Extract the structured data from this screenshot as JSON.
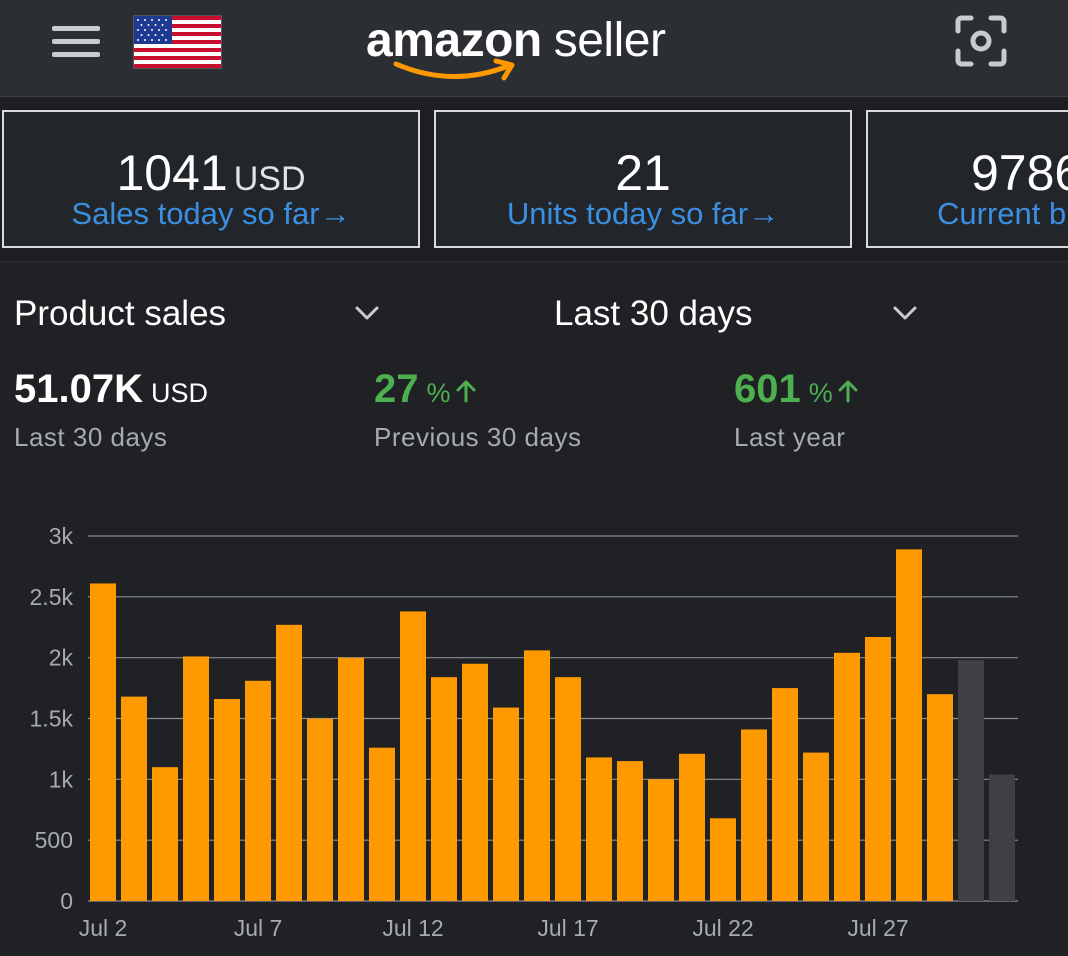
{
  "header": {
    "logo_brand": "amazon",
    "logo_suffix": "seller",
    "icons": [
      "menu-icon",
      "us-flag-icon",
      "scan-icon"
    ]
  },
  "cards": [
    {
      "value": "1041",
      "unit": "USD",
      "link": "Sales today so far"
    },
    {
      "value": "21",
      "unit": "",
      "link": "Units today so far"
    },
    {
      "value": "9786",
      "unit": "",
      "link": "Current b"
    }
  ],
  "link_arrow": "→",
  "selectors": {
    "metric": "Product sales",
    "period": "Last 30 days"
  },
  "stats": {
    "total": {
      "value": "51.07K",
      "unit": "USD",
      "label": "Last 30 days"
    },
    "previous": {
      "value": "27",
      "unit": "%",
      "label": "Previous 30 days"
    },
    "last_year": {
      "value": "601",
      "unit": "%",
      "label": "Last year"
    }
  },
  "colors": {
    "bar": "#ff9900",
    "bar_future": "#3f4044",
    "positive": "#4caf50",
    "link": "#3b8fe0",
    "grid": "#8a8d92"
  },
  "chart_data": {
    "type": "bar",
    "ylim": [
      0,
      3000
    ],
    "y_ticks": [
      {
        "v": 0,
        "label": "0"
      },
      {
        "v": 500,
        "label": "500"
      },
      {
        "v": 1000,
        "label": "1k"
      },
      {
        "v": 1500,
        "label": "1.5k"
      },
      {
        "v": 2000,
        "label": "2k"
      },
      {
        "v": 2500,
        "label": "2.5k"
      },
      {
        "v": 3000,
        "label": "3k"
      }
    ],
    "x_tick_labels": [
      {
        "index": 0,
        "label": "Jul 2"
      },
      {
        "index": 5,
        "label": "Jul 7"
      },
      {
        "index": 10,
        "label": "Jul 12"
      },
      {
        "index": 15,
        "label": "Jul 17"
      },
      {
        "index": 20,
        "label": "Jul 22"
      },
      {
        "index": 25,
        "label": "Jul 27"
      }
    ],
    "grid": true,
    "series": [
      {
        "values": [
          2610,
          1680,
          1100,
          2010,
          1660,
          1810,
          2270,
          1500,
          2000,
          1260,
          2380,
          1840,
          1950,
          1590,
          2060,
          1840,
          1180,
          1150,
          1000,
          1210,
          680,
          1410,
          1750,
          1220,
          2040,
          2170,
          2890,
          1700
        ]
      },
      {
        "values": [
          null,
          null,
          null,
          null,
          null,
          null,
          null,
          null,
          null,
          null,
          null,
          null,
          null,
          null,
          null,
          null,
          null,
          null,
          null,
          null,
          null,
          null,
          null,
          null,
          null,
          null,
          null,
          null,
          1980,
          1040
        ]
      }
    ]
  }
}
